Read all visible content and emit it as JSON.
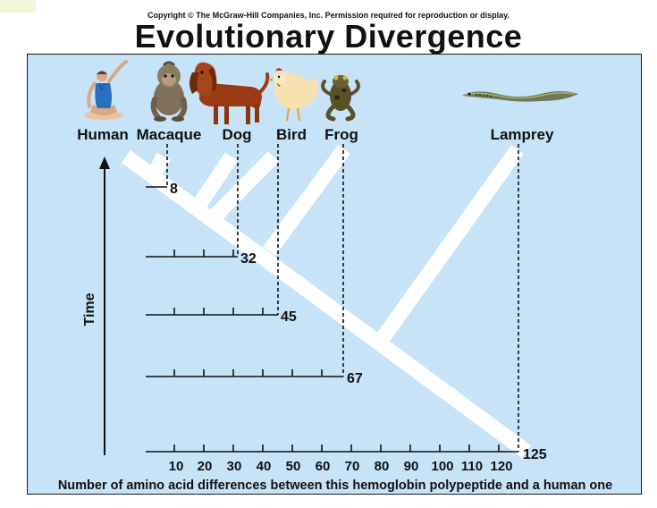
{
  "header": {
    "copyright": "Copyright © The McGraw-Hill Companies, Inc. Permission required for reproduction or display.",
    "title": "Evolutionary Divergence"
  },
  "species": [
    {
      "name": "Human",
      "icon": "human-icon"
    },
    {
      "name": "Macaque",
      "icon": "macaque-icon"
    },
    {
      "name": "Dog",
      "icon": "dog-icon"
    },
    {
      "name": "Bird",
      "icon": "bird-icon"
    },
    {
      "name": "Frog",
      "icon": "frog-icon"
    },
    {
      "name": "Lamprey",
      "icon": "lamprey-icon"
    }
  ],
  "differences": [
    {
      "species": "Macaque",
      "value": "8"
    },
    {
      "species": "Dog",
      "value": "32"
    },
    {
      "species": "Bird",
      "value": "45"
    },
    {
      "species": "Frog",
      "value": "67"
    },
    {
      "species": "Lamprey",
      "value": "125"
    }
  ],
  "axis": {
    "time_label": "Time",
    "ticks": [
      "10",
      "20",
      "30",
      "40",
      "50",
      "60",
      "70",
      "80",
      "90",
      "100",
      "110",
      "120"
    ],
    "caption": "Number of amino acid differences between this hemoglobin polypeptide and a human one"
  },
  "colors": {
    "panel": "#c6e3f7",
    "branch": "#ffffff"
  }
}
